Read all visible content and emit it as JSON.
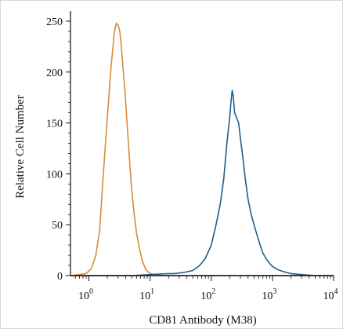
{
  "chart_data": {
    "type": "line",
    "title": "",
    "xlabel": "CD81 Antibody (M38)",
    "ylabel": "Relative Cell Number",
    "xscale": "log",
    "xlim": [
      0.5,
      10000
    ],
    "ylim": [
      0,
      260
    ],
    "x_ticks": [
      {
        "value": 1,
        "base": "10",
        "exp": "0"
      },
      {
        "value": 10,
        "base": "10",
        "exp": "1"
      },
      {
        "value": 100,
        "base": "10",
        "exp": "2"
      },
      {
        "value": 1000,
        "base": "10",
        "exp": "3"
      },
      {
        "value": 10000,
        "base": "10",
        "exp": "4"
      }
    ],
    "y_ticks": [
      {
        "value": 0,
        "label": "0"
      },
      {
        "value": 50,
        "label": "50"
      },
      {
        "value": 100,
        "label": "100"
      },
      {
        "value": 150,
        "label": "150"
      },
      {
        "value": 200,
        "label": "200"
      },
      {
        "value": 250,
        "label": "250"
      }
    ],
    "grid": false,
    "legend": "none",
    "series": [
      {
        "color": "#d98a3a",
        "x": [
          0.5,
          0.7,
          0.9,
          1.1,
          1.3,
          1.5,
          1.7,
          2.0,
          2.3,
          2.6,
          2.8,
          3.0,
          3.2,
          3.4,
          3.6,
          3.9,
          4.2,
          4.6,
          5.0,
          5.5,
          6.0,
          6.8,
          7.5,
          8.5,
          10,
          12,
          15,
          20,
          50,
          200,
          1000,
          10000
        ],
        "y": [
          0,
          1,
          2,
          7,
          20,
          45,
          95,
          155,
          205,
          238,
          248,
          246,
          240,
          225,
          205,
          180,
          150,
          115,
          85,
          60,
          42,
          25,
          14,
          6,
          2,
          1,
          0,
          0,
          0,
          0,
          0,
          0
        ]
      },
      {
        "color": "#1f5f8e",
        "x": [
          0.5,
          2,
          5,
          10,
          20,
          25,
          35,
          50,
          65,
          80,
          100,
          120,
          140,
          160,
          180,
          200,
          210,
          220,
          230,
          240,
          260,
          280,
          300,
          330,
          360,
          400,
          450,
          500,
          560,
          630,
          700,
          800,
          900,
          1000,
          1200,
          1500,
          2000,
          3000,
          5000,
          10000
        ],
        "y": [
          0,
          0,
          0,
          1,
          2,
          2,
          3,
          5,
          10,
          17,
          30,
          50,
          70,
          95,
          130,
          155,
          170,
          182,
          176,
          160,
          155,
          150,
          135,
          115,
          95,
          75,
          60,
          50,
          40,
          30,
          22,
          16,
          12,
          9,
          6,
          4,
          2,
          1,
          0,
          0
        ]
      },
      {
        "color": "#c0392b",
        "x": [
          0.5,
          10000
        ],
        "y": [
          0,
          0
        ]
      }
    ]
  }
}
